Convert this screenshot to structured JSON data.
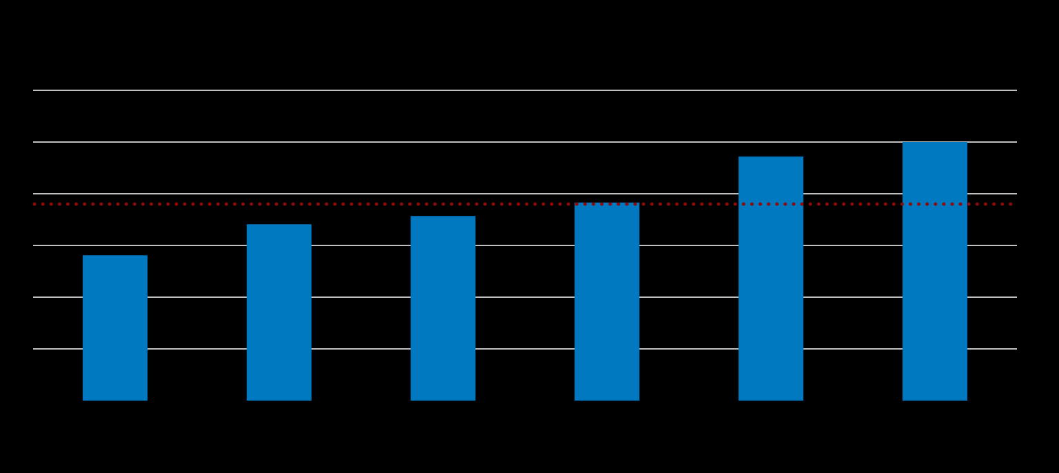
{
  "chart_data": {
    "type": "bar",
    "title": "",
    "xlabel": "",
    "ylabel": "",
    "categories": [
      "",
      "",
      "",
      "",
      "",
      ""
    ],
    "values": [
      2.81,
      3.41,
      3.57,
      3.83,
      4.72,
      5.0
    ],
    "ylim": [
      0,
      6
    ],
    "yticks": [
      1,
      2,
      3,
      4,
      5,
      6
    ],
    "grid": true,
    "reference_line": {
      "value": 3.8,
      "style": "dotted",
      "color": "#8b0a0a"
    },
    "colors": {
      "bar": "#0079c1",
      "grid": "#ffffff",
      "background": "#000000"
    }
  }
}
